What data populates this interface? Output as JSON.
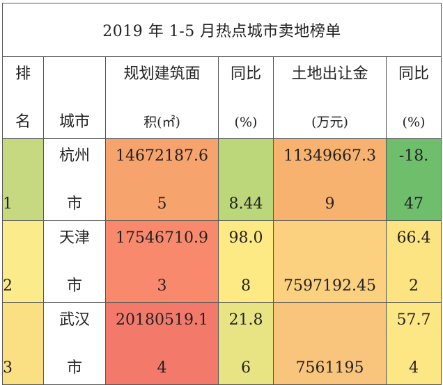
{
  "title": "2019 年 1-5 月热点城市卖地榜单",
  "headers": {
    "rank": [
      "排",
      "名"
    ],
    "city": [
      "",
      "城市"
    ],
    "area": [
      "规划建筑面",
      "积(㎡)"
    ],
    "area_yoy": [
      "同比",
      "(%)"
    ],
    "fee": [
      "土地出让金",
      "(万元)"
    ],
    "fee_yoy": [
      "同比",
      "(%)"
    ]
  },
  "rows": [
    {
      "rank": "1",
      "city": [
        "杭州",
        "市"
      ],
      "area": [
        "14672187.6",
        "5"
      ],
      "area_yoy": [
        "",
        "8.44"
      ],
      "fee": [
        "11349667.3",
        "9"
      ],
      "fee_yoy": [
        "-18.",
        "47"
      ],
      "colors": {
        "rank": "#c6d980",
        "area": "#f7a36e",
        "area_yoy": "#bcd77a",
        "fee": "#f7b26f",
        "fee_yoy": "#6fbe6c"
      }
    },
    {
      "rank": "2",
      "city": [
        "天津",
        "市"
      ],
      "area": [
        "17546710.9",
        "3"
      ],
      "area_yoy": [
        "98.0",
        "8"
      ],
      "fee": [
        "",
        "7597192.45"
      ],
      "fee_yoy": [
        "66.4",
        "2"
      ],
      "colors": {
        "rank": "#fbeb8a",
        "area": "#f8896c",
        "area_yoy": "#fdea84",
        "fee": "#fbd07f",
        "fee_yoy": "#fde483"
      }
    },
    {
      "rank": "3",
      "city": [
        "武汉",
        "市"
      ],
      "area": [
        "20180519.1",
        "4"
      ],
      "area_yoy": [
        "21.8",
        "6"
      ],
      "fee": [
        "",
        "7561195"
      ],
      "fee_yoy": [
        "57.7",
        "4"
      ],
      "colors": {
        "rank": "#fbe083",
        "area": "#f3796b",
        "area_yoy": "#e8e483",
        "fee": "#f9c47c",
        "fee_yoy": "#fde684"
      }
    }
  ]
}
